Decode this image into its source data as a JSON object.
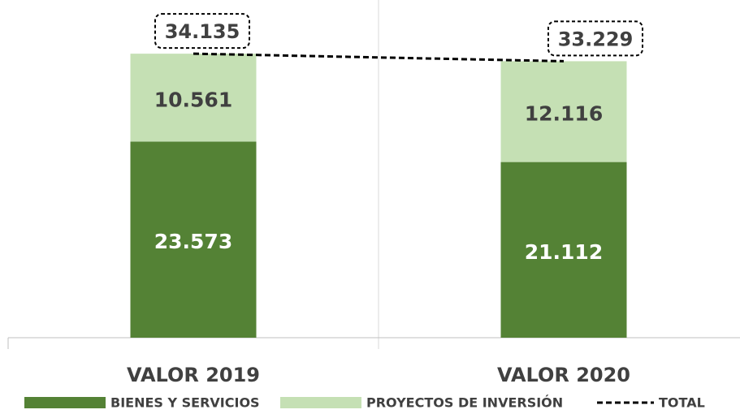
{
  "chart_data": {
    "type": "bar",
    "stacked": true,
    "categories": [
      "VALOR 2019",
      "VALOR 2020"
    ],
    "series": [
      {
        "name": "BIENES Y SERVICIOS",
        "color": "#548235",
        "values": [
          23573,
          21112
        ],
        "value_labels": [
          "23.573",
          "21.112"
        ]
      },
      {
        "name": "PROYECTOS DE INVERSIÓN",
        "color": "#c5e0b4",
        "values": [
          10561,
          12116
        ],
        "value_labels": [
          "10.561",
          "12.116"
        ]
      },
      {
        "name": "TOTAL",
        "type": "line",
        "color": "#000000",
        "dashed": true,
        "values": [
          34135,
          33229
        ],
        "value_labels": [
          "34.135",
          "33.229"
        ]
      }
    ],
    "ylim": [
      0,
      40000
    ],
    "legend": "bottom"
  }
}
